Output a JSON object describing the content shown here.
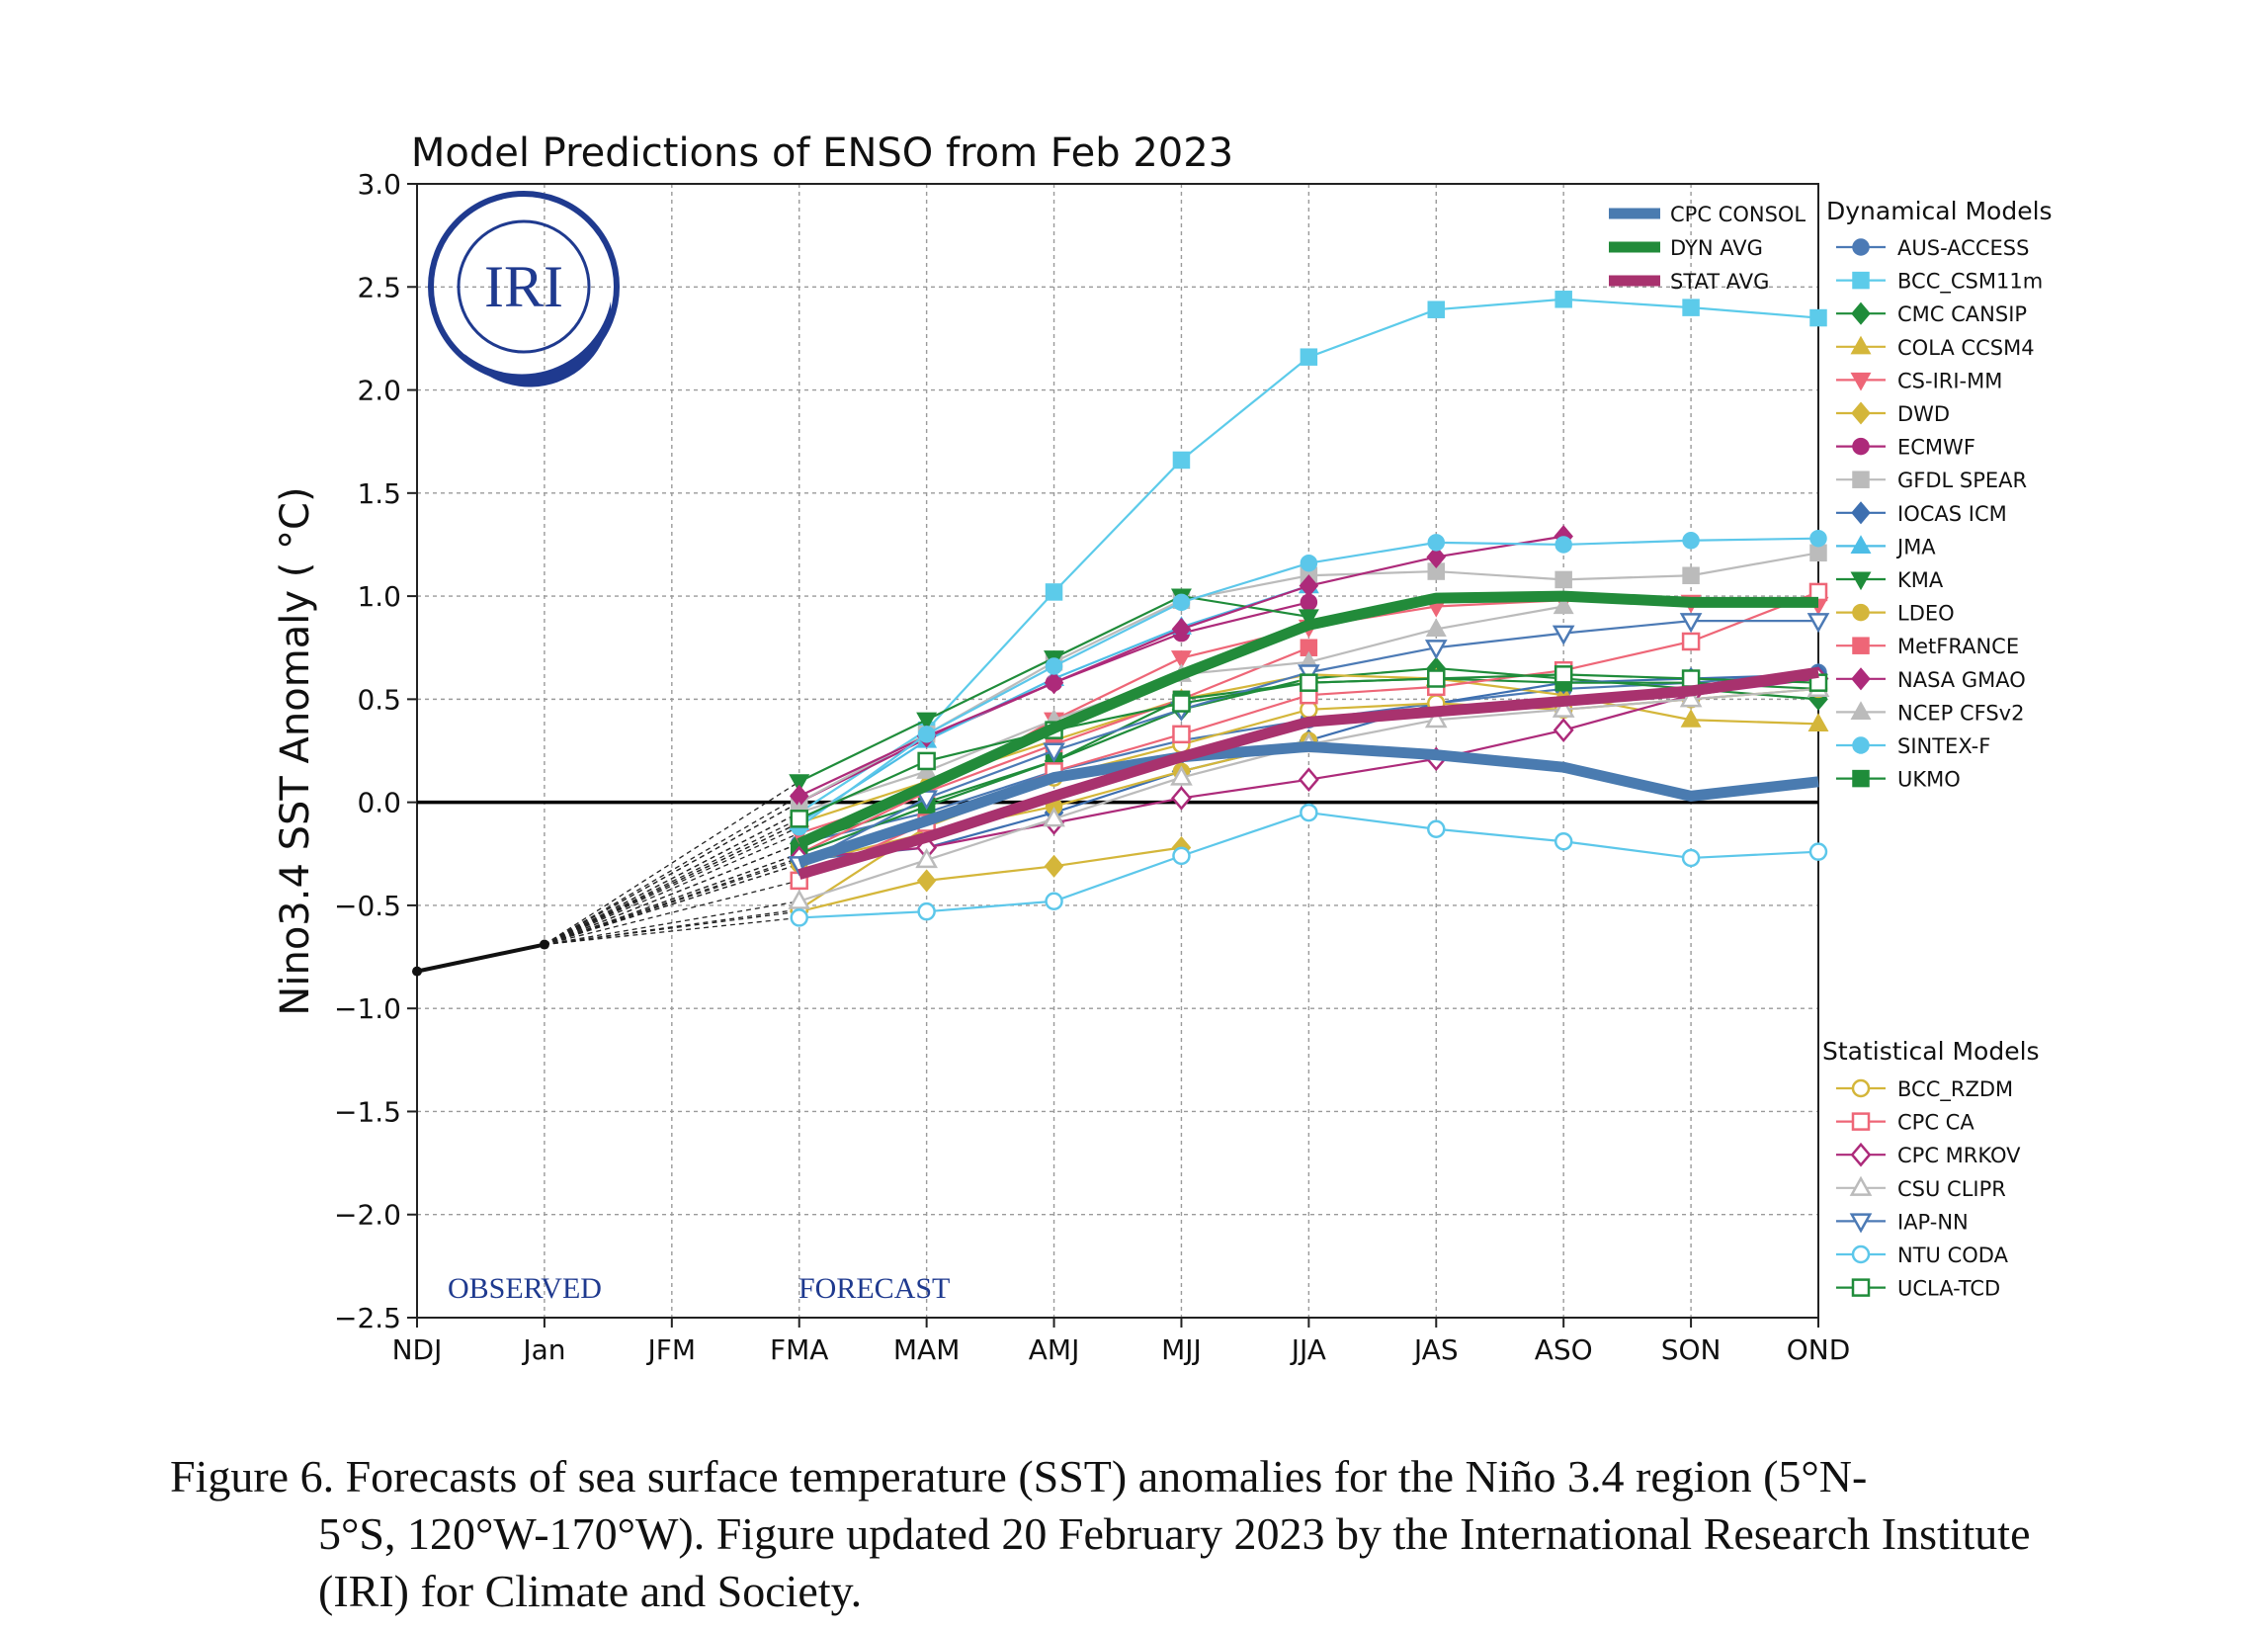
{
  "chart_data": {
    "type": "line",
    "title": "Model Predictions of ENSO from Feb 2023",
    "ylabel": "Nino3.4 SST Anomaly ( °C)",
    "xlabel": "",
    "categories": [
      "NDJ",
      "Jan",
      "JFM",
      "FMA",
      "MAM",
      "AMJ",
      "MJJ",
      "JJA",
      "JAS",
      "ASO",
      "SON",
      "OND"
    ],
    "ylim": [
      -2.5,
      3.0
    ],
    "yticks": [
      -2.5,
      -2.0,
      -1.5,
      -1.0,
      -0.5,
      0.0,
      0.5,
      1.0,
      1.5,
      2.0,
      2.5,
      3.0
    ],
    "ytick_labels": [
      "−2.5",
      "−2.0",
      "−1.5",
      "−1.0",
      "−0.5",
      "0.0",
      "0.5",
      "1.0",
      "1.5",
      "2.0",
      "2.5",
      "3.0"
    ],
    "grid": true,
    "observed_label": "OBSERVED",
    "forecast_label": "FORECAST",
    "logo_text": "IRI",
    "observed": {
      "values": [
        -0.82,
        -0.69
      ]
    },
    "avg_legend": [
      {
        "name": "CPC CONSOL",
        "color": "#4a7bb0"
      },
      {
        "name": "DYN AVG",
        "color": "#228b3a"
      },
      {
        "name": "STAT AVG",
        "color": "#a8326e"
      }
    ],
    "averages": [
      {
        "name": "CPC CONSOL",
        "color": "#4a7bb0",
        "width": 11,
        "values": [
          null,
          null,
          null,
          -0.29,
          -0.09,
          0.12,
          0.22,
          0.27,
          0.23,
          0.17,
          0.03,
          0.1
        ]
      },
      {
        "name": "DYN AVG",
        "color": "#228b3a",
        "width": 11,
        "values": [
          null,
          null,
          null,
          -0.2,
          0.08,
          0.36,
          0.62,
          0.86,
          0.99,
          1.0,
          0.97,
          0.97
        ]
      },
      {
        "name": "STAT AVG",
        "color": "#a8326e",
        "width": 11,
        "values": [
          null,
          null,
          null,
          -0.35,
          -0.17,
          0.03,
          0.22,
          0.39,
          0.44,
          0.49,
          0.54,
          0.63
        ]
      }
    ],
    "dynamical_title": "Dynamical Models",
    "statistical_title": "Statistical Models",
    "dynamical": [
      {
        "name": "AUS-ACCESS",
        "color": "#4c7ab5",
        "marker": "circle",
        "fill": true,
        "values": [
          null,
          null,
          null,
          -0.2,
          -0.05,
          0.15,
          0.3,
          0.4,
          0.48,
          0.55,
          0.58,
          0.63
        ]
      },
      {
        "name": "BCC_CSM11m",
        "color": "#5ccbea",
        "marker": "square",
        "fill": true,
        "values": [
          null,
          null,
          null,
          -0.05,
          0.35,
          1.02,
          1.66,
          2.16,
          2.39,
          2.44,
          2.4,
          2.35
        ]
      },
      {
        "name": "CMC CANSIP",
        "color": "#1f8c3a",
        "marker": "diamond",
        "fill": true,
        "values": [
          null,
          null,
          null,
          -0.2,
          0.0,
          0.2,
          0.45,
          0.6,
          0.65,
          0.6,
          0.55,
          0.5
        ]
      },
      {
        "name": "COLA CCSM4",
        "color": "#d4b63a",
        "marker": "triangle-up",
        "fill": true,
        "values": [
          null,
          null,
          null,
          -0.1,
          0.1,
          0.3,
          0.5,
          0.62,
          0.6,
          0.52,
          0.4,
          0.38
        ]
      },
      {
        "name": "CS-IRI-MM",
        "color": "#ee6677",
        "marker": "triangle-down",
        "fill": true,
        "values": [
          null,
          null,
          null,
          -0.15,
          0.05,
          0.4,
          0.7,
          0.85,
          0.95,
          0.98,
          0.97,
          0.96
        ]
      },
      {
        "name": "DWD",
        "color": "#d4b63a",
        "marker": "diamond",
        "fill": true,
        "values": [
          null,
          null,
          null,
          -0.53,
          -0.38,
          -0.31,
          -0.22,
          null,
          null,
          null,
          null,
          null
        ]
      },
      {
        "name": "ECMWF",
        "color": "#ad2a7a",
        "marker": "circle",
        "fill": true,
        "values": [
          null,
          null,
          null,
          0.0,
          0.31,
          0.58,
          0.82,
          0.97,
          null,
          null,
          null,
          null
        ]
      },
      {
        "name": "GFDL SPEAR",
        "color": "#bbbbbb",
        "marker": "square",
        "fill": true,
        "values": [
          null,
          null,
          null,
          0.0,
          0.33,
          0.68,
          0.98,
          1.1,
          1.12,
          1.08,
          1.1,
          1.21
        ]
      },
      {
        "name": "IOCAS ICM",
        "color": "#3d6fb0",
        "marker": "diamond",
        "fill": true,
        "values": [
          null,
          null,
          null,
          -0.28,
          -0.22,
          -0.05,
          0.15,
          0.3,
          0.48,
          0.58,
          0.6,
          0.62
        ]
      },
      {
        "name": "JMA",
        "color": "#4cbde6",
        "marker": "triangle-up",
        "fill": true,
        "values": [
          null,
          null,
          null,
          -0.1,
          0.3,
          0.6,
          0.85,
          1.05,
          null,
          null,
          null,
          null
        ]
      },
      {
        "name": "KMA",
        "color": "#1f8c3a",
        "marker": "triangle-down",
        "fill": true,
        "values": [
          null,
          null,
          null,
          0.1,
          0.4,
          0.7,
          1.0,
          0.9,
          null,
          null,
          null,
          null
        ]
      },
      {
        "name": "LDEO",
        "color": "#d4b63a",
        "marker": "circle",
        "fill": true,
        "values": [
          null,
          null,
          null,
          -0.3,
          -0.15,
          -0.02,
          0.15,
          0.3,
          null,
          null,
          null,
          null
        ]
      },
      {
        "name": "MetFRANCE",
        "color": "#ee6677",
        "marker": "square",
        "fill": true,
        "values": [
          null,
          null,
          null,
          -0.25,
          0.05,
          0.28,
          0.5,
          0.75,
          null,
          null,
          null,
          null
        ]
      },
      {
        "name": "NASA GMAO",
        "color": "#ad2a7a",
        "marker": "diamond",
        "fill": true,
        "values": [
          null,
          null,
          null,
          0.03,
          0.32,
          0.58,
          0.84,
          1.05,
          1.19,
          1.29,
          null,
          null
        ]
      },
      {
        "name": "NCEP CFSv2",
        "color": "#bbbbbb",
        "marker": "triangle-up",
        "fill": true,
        "values": [
          null,
          null,
          null,
          -0.05,
          0.15,
          0.4,
          0.62,
          0.68,
          0.84,
          0.95,
          null,
          null
        ]
      },
      {
        "name": "SINTEX-F",
        "color": "#5cc7ea",
        "marker": "circle",
        "fill": true,
        "values": [
          null,
          null,
          null,
          -0.12,
          0.33,
          0.66,
          0.97,
          1.16,
          1.26,
          1.25,
          1.27,
          1.28
        ]
      },
      {
        "name": "UKMO",
        "color": "#1f8c3a",
        "marker": "square",
        "fill": true,
        "values": [
          null,
          null,
          null,
          -0.25,
          -0.02,
          0.2,
          0.5,
          0.58,
          0.6,
          0.58,
          0.58,
          0.55
        ]
      }
    ],
    "statistical": [
      {
        "name": "BCC_RZDM",
        "color": "#d4b63a",
        "marker": "circle",
        "fill": false,
        "values": [
          null,
          null,
          null,
          -0.52,
          -0.12,
          0.12,
          0.28,
          0.45,
          0.48,
          0.45,
          0.5,
          0.55
        ]
      },
      {
        "name": "CPC CA",
        "color": "#ee6677",
        "marker": "square",
        "fill": false,
        "values": [
          null,
          null,
          null,
          -0.38,
          -0.1,
          0.15,
          0.33,
          0.52,
          0.56,
          0.64,
          0.78,
          1.02
        ]
      },
      {
        "name": "CPC MRKOV",
        "color": "#ad2a7a",
        "marker": "diamond",
        "fill": false,
        "values": [
          null,
          null,
          null,
          -0.27,
          -0.22,
          -0.1,
          0.02,
          0.11,
          0.21,
          0.35,
          0.52,
          0.6
        ]
      },
      {
        "name": "CSU CLIPR",
        "color": "#bbbbbb",
        "marker": "triangle-up",
        "fill": false,
        "values": [
          null,
          null,
          null,
          -0.48,
          -0.28,
          -0.08,
          0.12,
          0.28,
          0.4,
          0.45,
          0.5,
          0.55
        ]
      },
      {
        "name": "IAP-NN",
        "color": "#4c7ab5",
        "marker": "triangle-down",
        "fill": false,
        "values": [
          null,
          null,
          null,
          -0.3,
          0.02,
          0.25,
          0.45,
          0.63,
          0.75,
          0.82,
          0.88,
          0.88
        ]
      },
      {
        "name": "NTU CODA",
        "color": "#5cc7ea",
        "marker": "circle",
        "fill": false,
        "values": [
          null,
          null,
          null,
          -0.56,
          -0.53,
          -0.48,
          -0.26,
          -0.05,
          -0.13,
          -0.19,
          -0.27,
          -0.24
        ]
      },
      {
        "name": "UCLA-TCD",
        "color": "#1f8c3a",
        "marker": "square",
        "fill": false,
        "values": [
          null,
          null,
          null,
          -0.08,
          0.2,
          0.35,
          0.48,
          0.58,
          0.6,
          0.62,
          0.6,
          0.58
        ]
      }
    ]
  },
  "caption": {
    "first": "Figure 6. Forecasts of sea surface temperature (SST) anomalies for the Niño 3.4 region (5°N-",
    "rest": "5°S, 120°W-170°W). Figure updated 20 February 2023 by the International Research Institute (IRI) for Climate and Society."
  }
}
